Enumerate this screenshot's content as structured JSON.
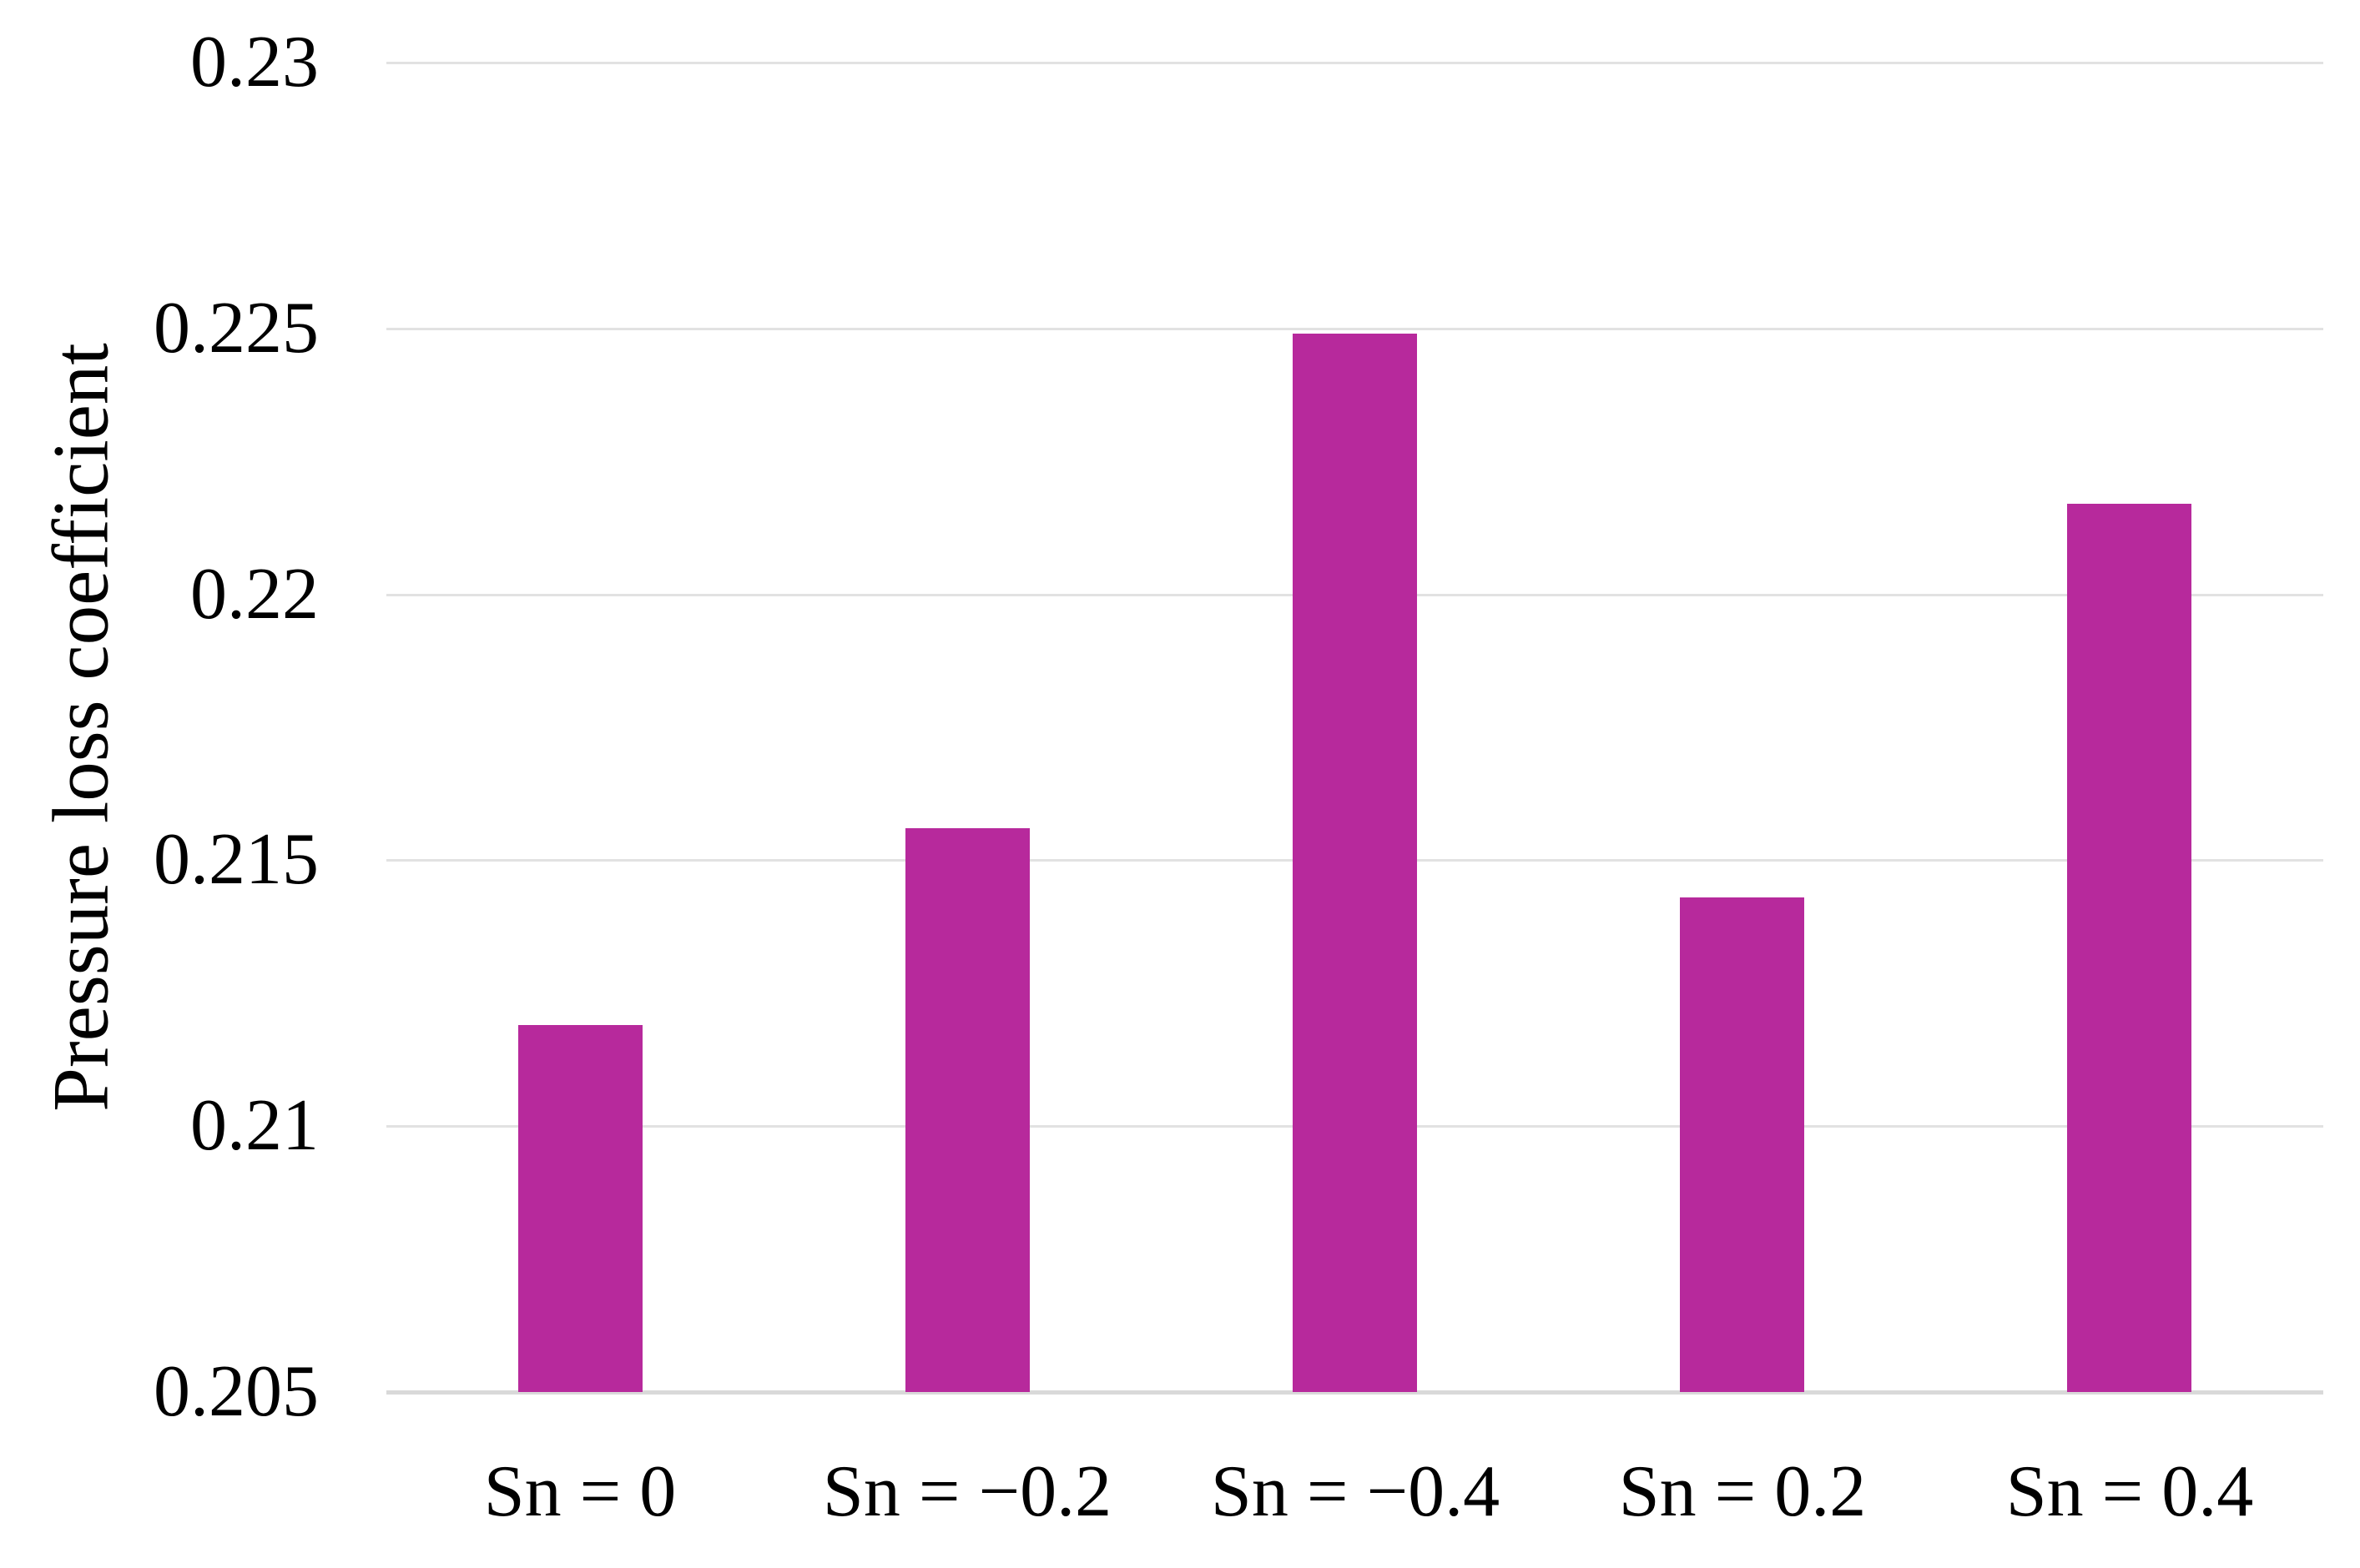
{
  "chart_data": {
    "type": "bar",
    "title": "",
    "ylabel": "Pressure loss coefficient",
    "xlabel": "",
    "categories": [
      "Sn = 0",
      "Sn = −0.2",
      "Sn = −0.4",
      "Sn = 0.2",
      "Sn = 0.4"
    ],
    "values": [
      0.2119,
      0.2156,
      0.2249,
      0.2143,
      0.2217
    ],
    "ylim": [
      0.205,
      0.23
    ],
    "yticks": [
      0.205,
      0.21,
      0.215,
      0.22,
      0.225,
      0.23
    ],
    "ytick_labels": [
      "0.205",
      "0.21",
      "0.215",
      "0.22",
      "0.225",
      "0.23"
    ],
    "grid": "horizontal",
    "legend": "none",
    "series_count": 1,
    "bar_color": "#B7299C",
    "gridline_color": "#E2E2E2",
    "axis_line_color": "#D9D9D9",
    "background_color": "#FFFFFF",
    "bar_width_fraction": 0.32
  }
}
